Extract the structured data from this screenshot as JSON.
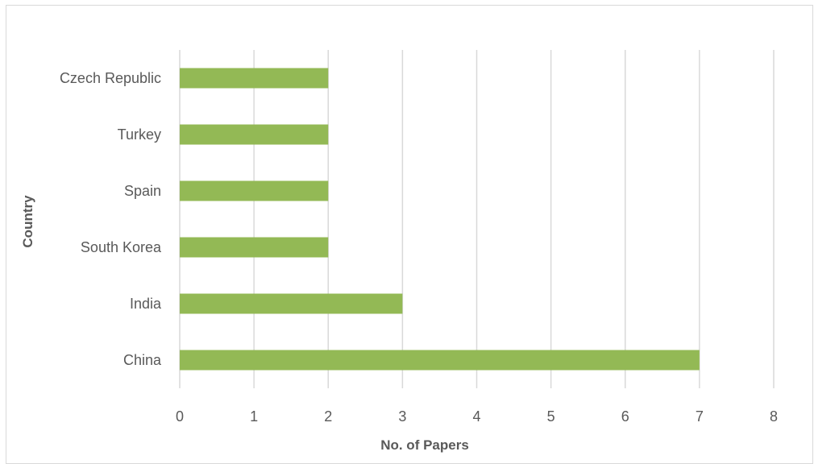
{
  "chart_data": {
    "type": "bar",
    "orientation": "horizontal",
    "categories": [
      "China",
      "India",
      "South Korea",
      "Spain",
      "Turkey",
      "Czech Republic"
    ],
    "values": [
      7,
      3,
      2,
      2,
      2,
      2
    ],
    "title": "",
    "xlabel": "No. of Papers",
    "ylabel": "Country",
    "xlim": [
      0,
      8
    ],
    "x_ticks": [
      "0",
      "1",
      "2",
      "3",
      "4",
      "5",
      "6",
      "7",
      "8"
    ],
    "grid": "vertical",
    "bar_color": "#93b955",
    "grid_color": "#d9d9d9",
    "legend": "none"
  }
}
